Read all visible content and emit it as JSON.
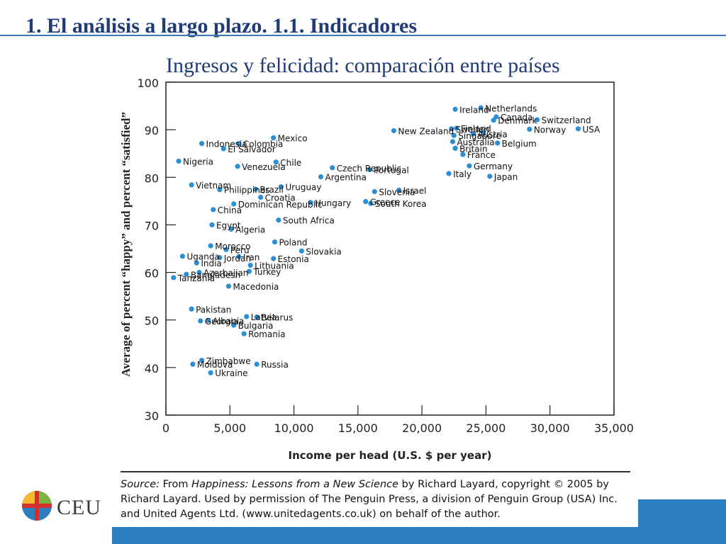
{
  "slide": {
    "title": "1. El análisis a largo plazo. 1.1. Indicadores",
    "subtitle": "Ingresos y felicidad: comparación entre países",
    "logo_text": "CEU"
  },
  "source": {
    "prefix": "Source:",
    "text1": " From ",
    "book": "Happiness: Lessons from a New Science",
    "text2": " by Richard Layard, copyright © 2005 by Richard Layard. Used by permission of The Penguin Press, a division of Penguin Group (USA) Inc. and United Agents Ltd. (www.unitedagents.co.uk) on behalf of the author."
  },
  "colors": {
    "accent": "#2c7fc1",
    "title": "#1f3b78",
    "dot": "#2b8fd6"
  },
  "chart_data": {
    "type": "scatter",
    "xlabel": "Income per head (U.S. $ per year)",
    "ylabel": "Average of percent “happy” and percent “satisfied”",
    "xlim": [
      0,
      35000
    ],
    "ylim": [
      30,
      100
    ],
    "xticks": [
      0,
      5000,
      10000,
      15000,
      20000,
      25000,
      30000,
      35000
    ],
    "xtick_labels": [
      "0",
      "5,000",
      "10,000",
      "15,000",
      "20,000",
      "25,000",
      "30,000",
      "35,000"
    ],
    "yticks": [
      30,
      40,
      50,
      60,
      70,
      80,
      90,
      100
    ],
    "grid": false,
    "points": [
      {
        "label": "Ireland",
        "x": 22600,
        "y": 94.3
      },
      {
        "label": "Netherlands",
        "x": 24600,
        "y": 94.6
      },
      {
        "label": "Denmark",
        "x": 25600,
        "y": 92.0
      },
      {
        "label": "Canada",
        "x": 25800,
        "y": 92.7
      },
      {
        "label": "Switzerland",
        "x": 29000,
        "y": 92.1
      },
      {
        "label": "USA",
        "x": 32200,
        "y": 90.2
      },
      {
        "label": "New Zealand",
        "x": 17800,
        "y": 89.8
      },
      {
        "label": "Sweden",
        "x": 22300,
        "y": 90.2
      },
      {
        "label": "Finland",
        "x": 22700,
        "y": 90.3
      },
      {
        "label": "Norway",
        "x": 28400,
        "y": 90.1
      },
      {
        "label": "Singapore",
        "x": 22500,
        "y": 88.8
      },
      {
        "label": "Austria",
        "x": 24000,
        "y": 89.1
      },
      {
        "label": "",
        "x": 24800,
        "y": 89.4
      },
      {
        "label": "Australia",
        "x": 22400,
        "y": 87.5
      },
      {
        "label": "Belgium",
        "x": 25900,
        "y": 87.2
      },
      {
        "label": "Britain",
        "x": 22600,
        "y": 86.1
      },
      {
        "label": "France",
        "x": 23200,
        "y": 84.8
      },
      {
        "label": "Germany",
        "x": 23700,
        "y": 82.4
      },
      {
        "label": "Italy",
        "x": 22100,
        "y": 80.8
      },
      {
        "label": "Japan",
        "x": 25300,
        "y": 80.2
      },
      {
        "label": "Indonesia",
        "x": 2800,
        "y": 87.1
      },
      {
        "label": "Colombia",
        "x": 5700,
        "y": 87.1
      },
      {
        "label": "Mexico",
        "x": 8400,
        "y": 88.3
      },
      {
        "label": "El Salvador",
        "x": 4500,
        "y": 86.0
      },
      {
        "label": "Chile",
        "x": 8600,
        "y": 83.2
      },
      {
        "label": "Nigeria",
        "x": 1000,
        "y": 83.4
      },
      {
        "label": "Venezuela",
        "x": 5600,
        "y": 82.3
      },
      {
        "label": "Czech Republic",
        "x": 13000,
        "y": 82.0
      },
      {
        "label": "Portugal",
        "x": 15900,
        "y": 81.6
      },
      {
        "label": "Argentina",
        "x": 12100,
        "y": 80.1
      },
      {
        "label": "Vietnam",
        "x": 2000,
        "y": 78.4
      },
      {
        "label": "Brazil",
        "x": 7000,
        "y": 77.5
      },
      {
        "label": "Uruguay",
        "x": 9000,
        "y": 78.0
      },
      {
        "label": "Slovenia",
        "x": 16300,
        "y": 77.0
      },
      {
        "label": "Israel",
        "x": 18200,
        "y": 77.3
      },
      {
        "label": "Philippines",
        "x": 4200,
        "y": 77.4
      },
      {
        "label": "Croatia",
        "x": 7400,
        "y": 75.8
      },
      {
        "label": "Greece",
        "x": 15600,
        "y": 74.9
      },
      {
        "label": "South Korea",
        "x": 16000,
        "y": 74.5
      },
      {
        "label": "Dominican Republic",
        "x": 5300,
        "y": 74.4
      },
      {
        "label": "Hungary",
        "x": 11300,
        "y": 74.7
      },
      {
        "label": "China",
        "x": 3700,
        "y": 73.2
      },
      {
        "label": "South Africa",
        "x": 8800,
        "y": 71.0
      },
      {
        "label": "Egypt",
        "x": 3600,
        "y": 70.0
      },
      {
        "label": "Algeria",
        "x": 5100,
        "y": 69.1
      },
      {
        "label": "Poland",
        "x": 8500,
        "y": 66.4
      },
      {
        "label": "Morocco",
        "x": 3500,
        "y": 65.6
      },
      {
        "label": "Peru",
        "x": 4700,
        "y": 64.8
      },
      {
        "label": "Slovakia",
        "x": 10600,
        "y": 64.5
      },
      {
        "label": "Uganda",
        "x": 1300,
        "y": 63.4
      },
      {
        "label": "Jordan",
        "x": 4200,
        "y": 63.1
      },
      {
        "label": "Iran",
        "x": 5700,
        "y": 63.3
      },
      {
        "label": "Estonia",
        "x": 8400,
        "y": 62.9
      },
      {
        "label": "India",
        "x": 2400,
        "y": 62.0
      },
      {
        "label": "Lithuania",
        "x": 6600,
        "y": 61.5
      },
      {
        "label": "Azerbaijan",
        "x": 2600,
        "y": 60.0
      },
      {
        "label": "Turkey",
        "x": 6500,
        "y": 60.2
      },
      {
        "label": "Bangladesh",
        "x": 1600,
        "y": 59.6
      },
      {
        "label": "Tanzania",
        "x": 600,
        "y": 58.9
      },
      {
        "label": "Macedonia",
        "x": 4900,
        "y": 57.1
      },
      {
        "label": "Pakistan",
        "x": 2000,
        "y": 52.3
      },
      {
        "label": "Latvia",
        "x": 6300,
        "y": 50.7
      },
      {
        "label": "Belarus",
        "x": 7100,
        "y": 50.6
      },
      {
        "label": "Albania",
        "x": 3300,
        "y": 49.9
      },
      {
        "label": "Georgia",
        "x": 2700,
        "y": 49.8
      },
      {
        "label": "Bulgaria",
        "x": 5300,
        "y": 48.9
      },
      {
        "label": "Romania",
        "x": 6100,
        "y": 47.1
      },
      {
        "label": "Moldova",
        "x": 2100,
        "y": 40.7
      },
      {
        "label": "Zimbabwe",
        "x": 2800,
        "y": 41.5
      },
      {
        "label": "Russia",
        "x": 7100,
        "y": 40.7
      },
      {
        "label": "Ukraine",
        "x": 3500,
        "y": 38.9
      }
    ]
  }
}
